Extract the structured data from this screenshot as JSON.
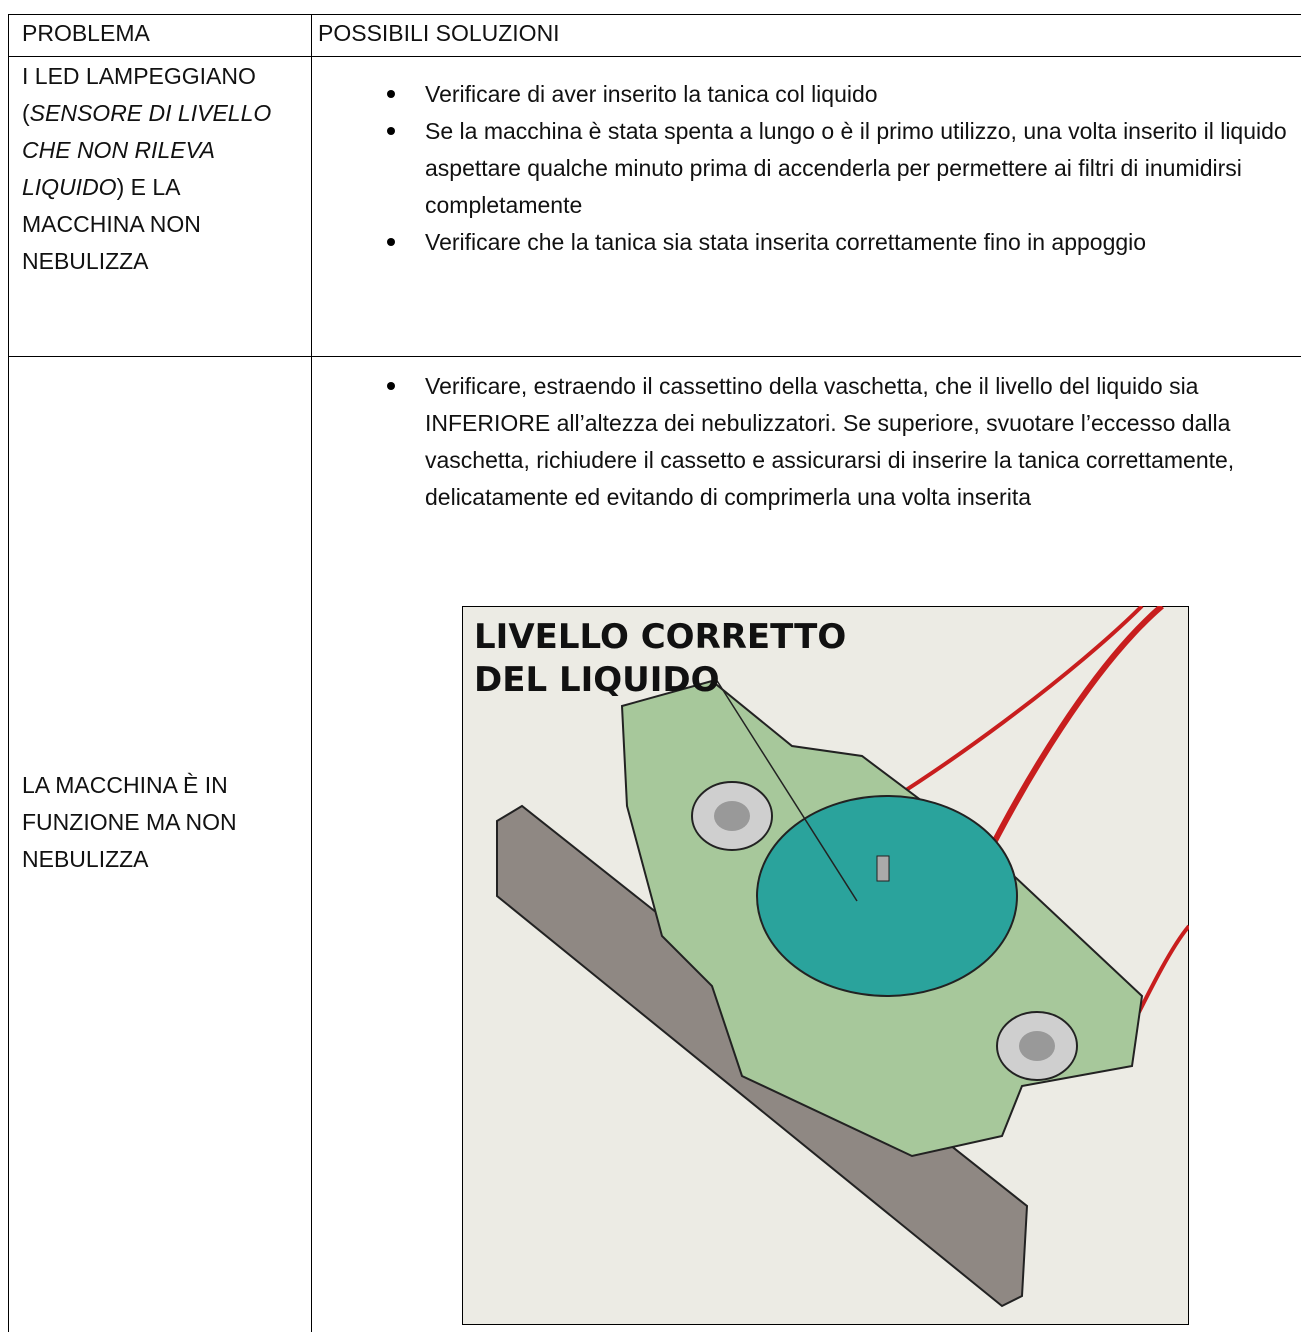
{
  "header": {
    "cells": [
      "PROBLEMA",
      "POSSIBILI SOLUZIONI"
    ]
  },
  "rows": [
    {
      "problem": [
        {
          "text": "I LED LAMPEGGIANO (",
          "italic": false
        },
        {
          "text": "SENSORE DI LIVELLO CHE NON RILEVA LIQUIDO",
          "italic": true
        },
        {
          "text": ") E LA MACCHINA NON NEBULIZZA",
          "italic": false
        }
      ],
      "solutions": [
        "Verificare di aver inserito la tanica col liquido",
        "Se la macchina è stata spenta a lungo o è il primo utilizzo, una volta inserito il liquido aspettare qualche minuto prima di accenderla per permettere ai filtri di inumidirsi completamente",
        "Verificare che la tanica sia stata inserita correttamente fino in appoggio"
      ]
    },
    {
      "problem": [
        {
          "text": "LA MACCHINA È IN FUNZIONE MA NON NEBULIZZA",
          "italic": false
        }
      ],
      "solutions": [
        "Verificare, estraendo il cassettino della vaschetta, che il livello del liquido sia INFERIORE all’altezza dei nebulizzatori. Se superiore, svuotare l’eccesso dalla vaschetta, richiudere il cassetto e assicurarsi di inserire la tanica correttamente, delicatamente ed evitando di comprimerla una volta inserita"
      ],
      "figure_label": [
        "LIVELLO CORRETTO",
        "DEL LIQUIDO"
      ]
    }
  ]
}
